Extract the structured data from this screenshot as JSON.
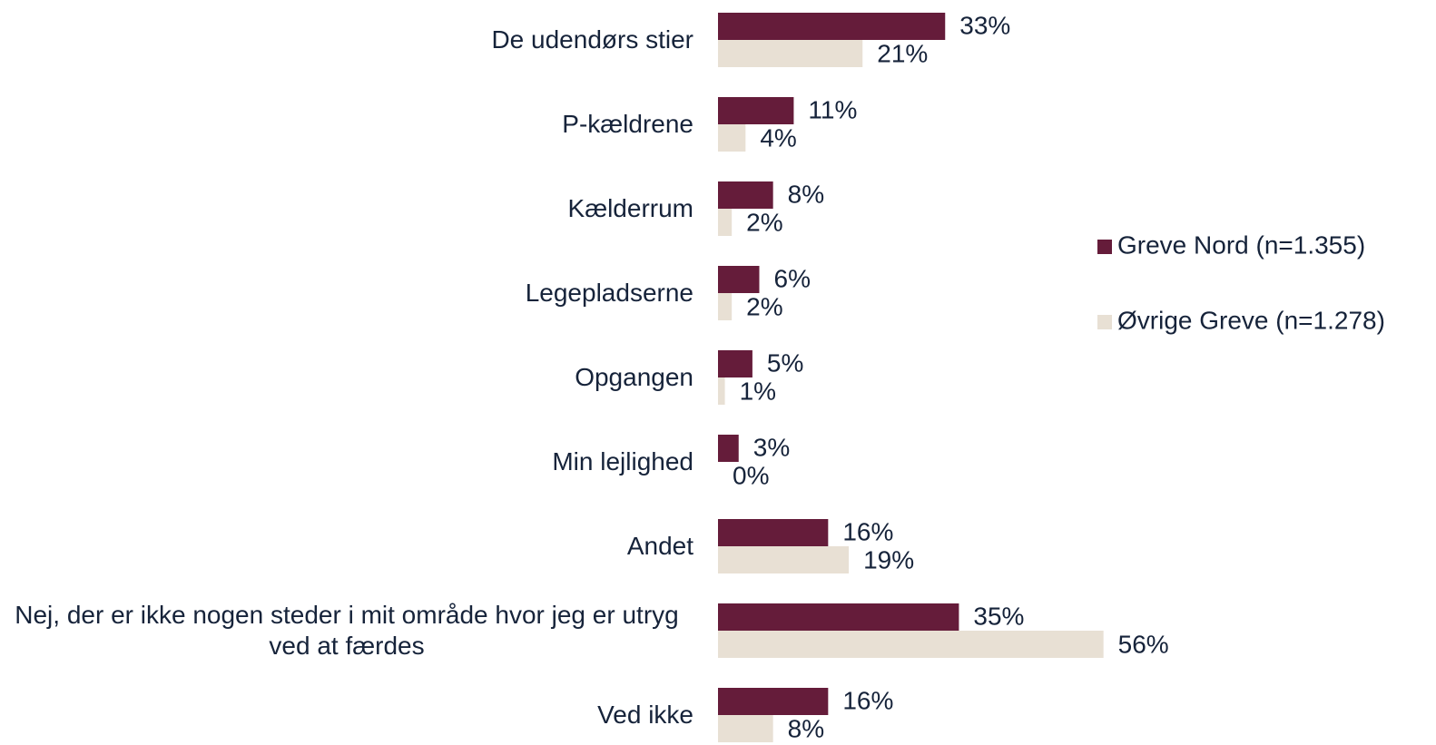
{
  "chart_data": {
    "type": "bar",
    "orientation": "horizontal",
    "categories": [
      "De udendørs stier",
      "P-kældrene",
      "Kælderrum",
      "Legepladserne",
      "Opgangen",
      "Min lejlighed",
      "Andet",
      "Nej, der er ikke nogen steder i mit område hvor jeg er utryg ved at færdes",
      "Ved ikke"
    ],
    "series": [
      {
        "name": "Greve Nord (n=1.355)",
        "color": "#651c3a",
        "values": [
          33,
          11,
          8,
          6,
          5,
          3,
          16,
          35,
          16
        ],
        "value_labels": [
          "33%",
          "11%",
          "8%",
          "6%",
          "5%",
          "3%",
          "16%",
          "35%",
          "16%"
        ]
      },
      {
        "name": "Øvrige Greve (n=1.278)",
        "color": "#e8e0d4",
        "values": [
          21,
          4,
          2,
          2,
          1,
          0,
          19,
          56,
          8
        ],
        "value_labels": [
          "21%",
          "4%",
          "2%",
          "2%",
          "1%",
          "0%",
          "19%",
          "56%",
          "8%"
        ]
      }
    ],
    "xlim": [
      0,
      60
    ],
    "legend": "right"
  }
}
